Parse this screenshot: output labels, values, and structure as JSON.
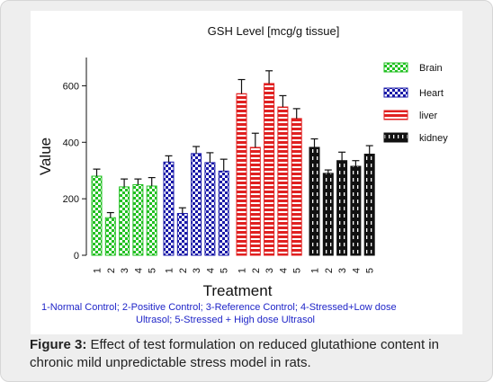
{
  "chart_data": {
    "type": "bar",
    "title": "GSH Level [mcg/g tissue]",
    "xlabel": "Treatment",
    "ylabel": "Value",
    "ylim": [
      0,
      700
    ],
    "yticks": [
      0,
      200,
      400,
      600
    ],
    "categories": [
      "1",
      "2",
      "3",
      "4",
      "5"
    ],
    "series": [
      {
        "name": "Brain",
        "color": "#22c022",
        "pattern": "checker-green",
        "values": [
          280,
          133,
          242,
          250,
          245
        ],
        "errors": [
          25,
          18,
          28,
          20,
          30
        ]
      },
      {
        "name": "Heart",
        "color": "#1a1aa8",
        "pattern": "checker-blue",
        "values": [
          330,
          148,
          360,
          328,
          298
        ],
        "errors": [
          22,
          20,
          25,
          35,
          42
        ]
      },
      {
        "name": "liver",
        "color": "#e02020",
        "pattern": "stripe-red",
        "values": [
          572,
          382,
          608,
          525,
          484
        ],
        "errors": [
          50,
          50,
          45,
          40,
          35
        ]
      },
      {
        "name": "kidney",
        "color": "#111111",
        "pattern": "bars-black",
        "values": [
          382,
          290,
          335,
          315,
          358
        ],
        "errors": [
          30,
          12,
          30,
          20,
          30
        ]
      }
    ],
    "legend_position": "top-right",
    "footnote_lines": [
      "1-Normal Control; 2-Positive Control; 3-Reference Control; 4-Stressed+Low  dose",
      "Ultrasol; 5-Stressed + High dose Ultrasol"
    ],
    "footnote_color": "#1f25c8"
  },
  "caption": {
    "label": "Figure 3:",
    "text": " Effect of test formulation on reduced glutathione content in chronic mild unpredictable stress model in rats."
  }
}
